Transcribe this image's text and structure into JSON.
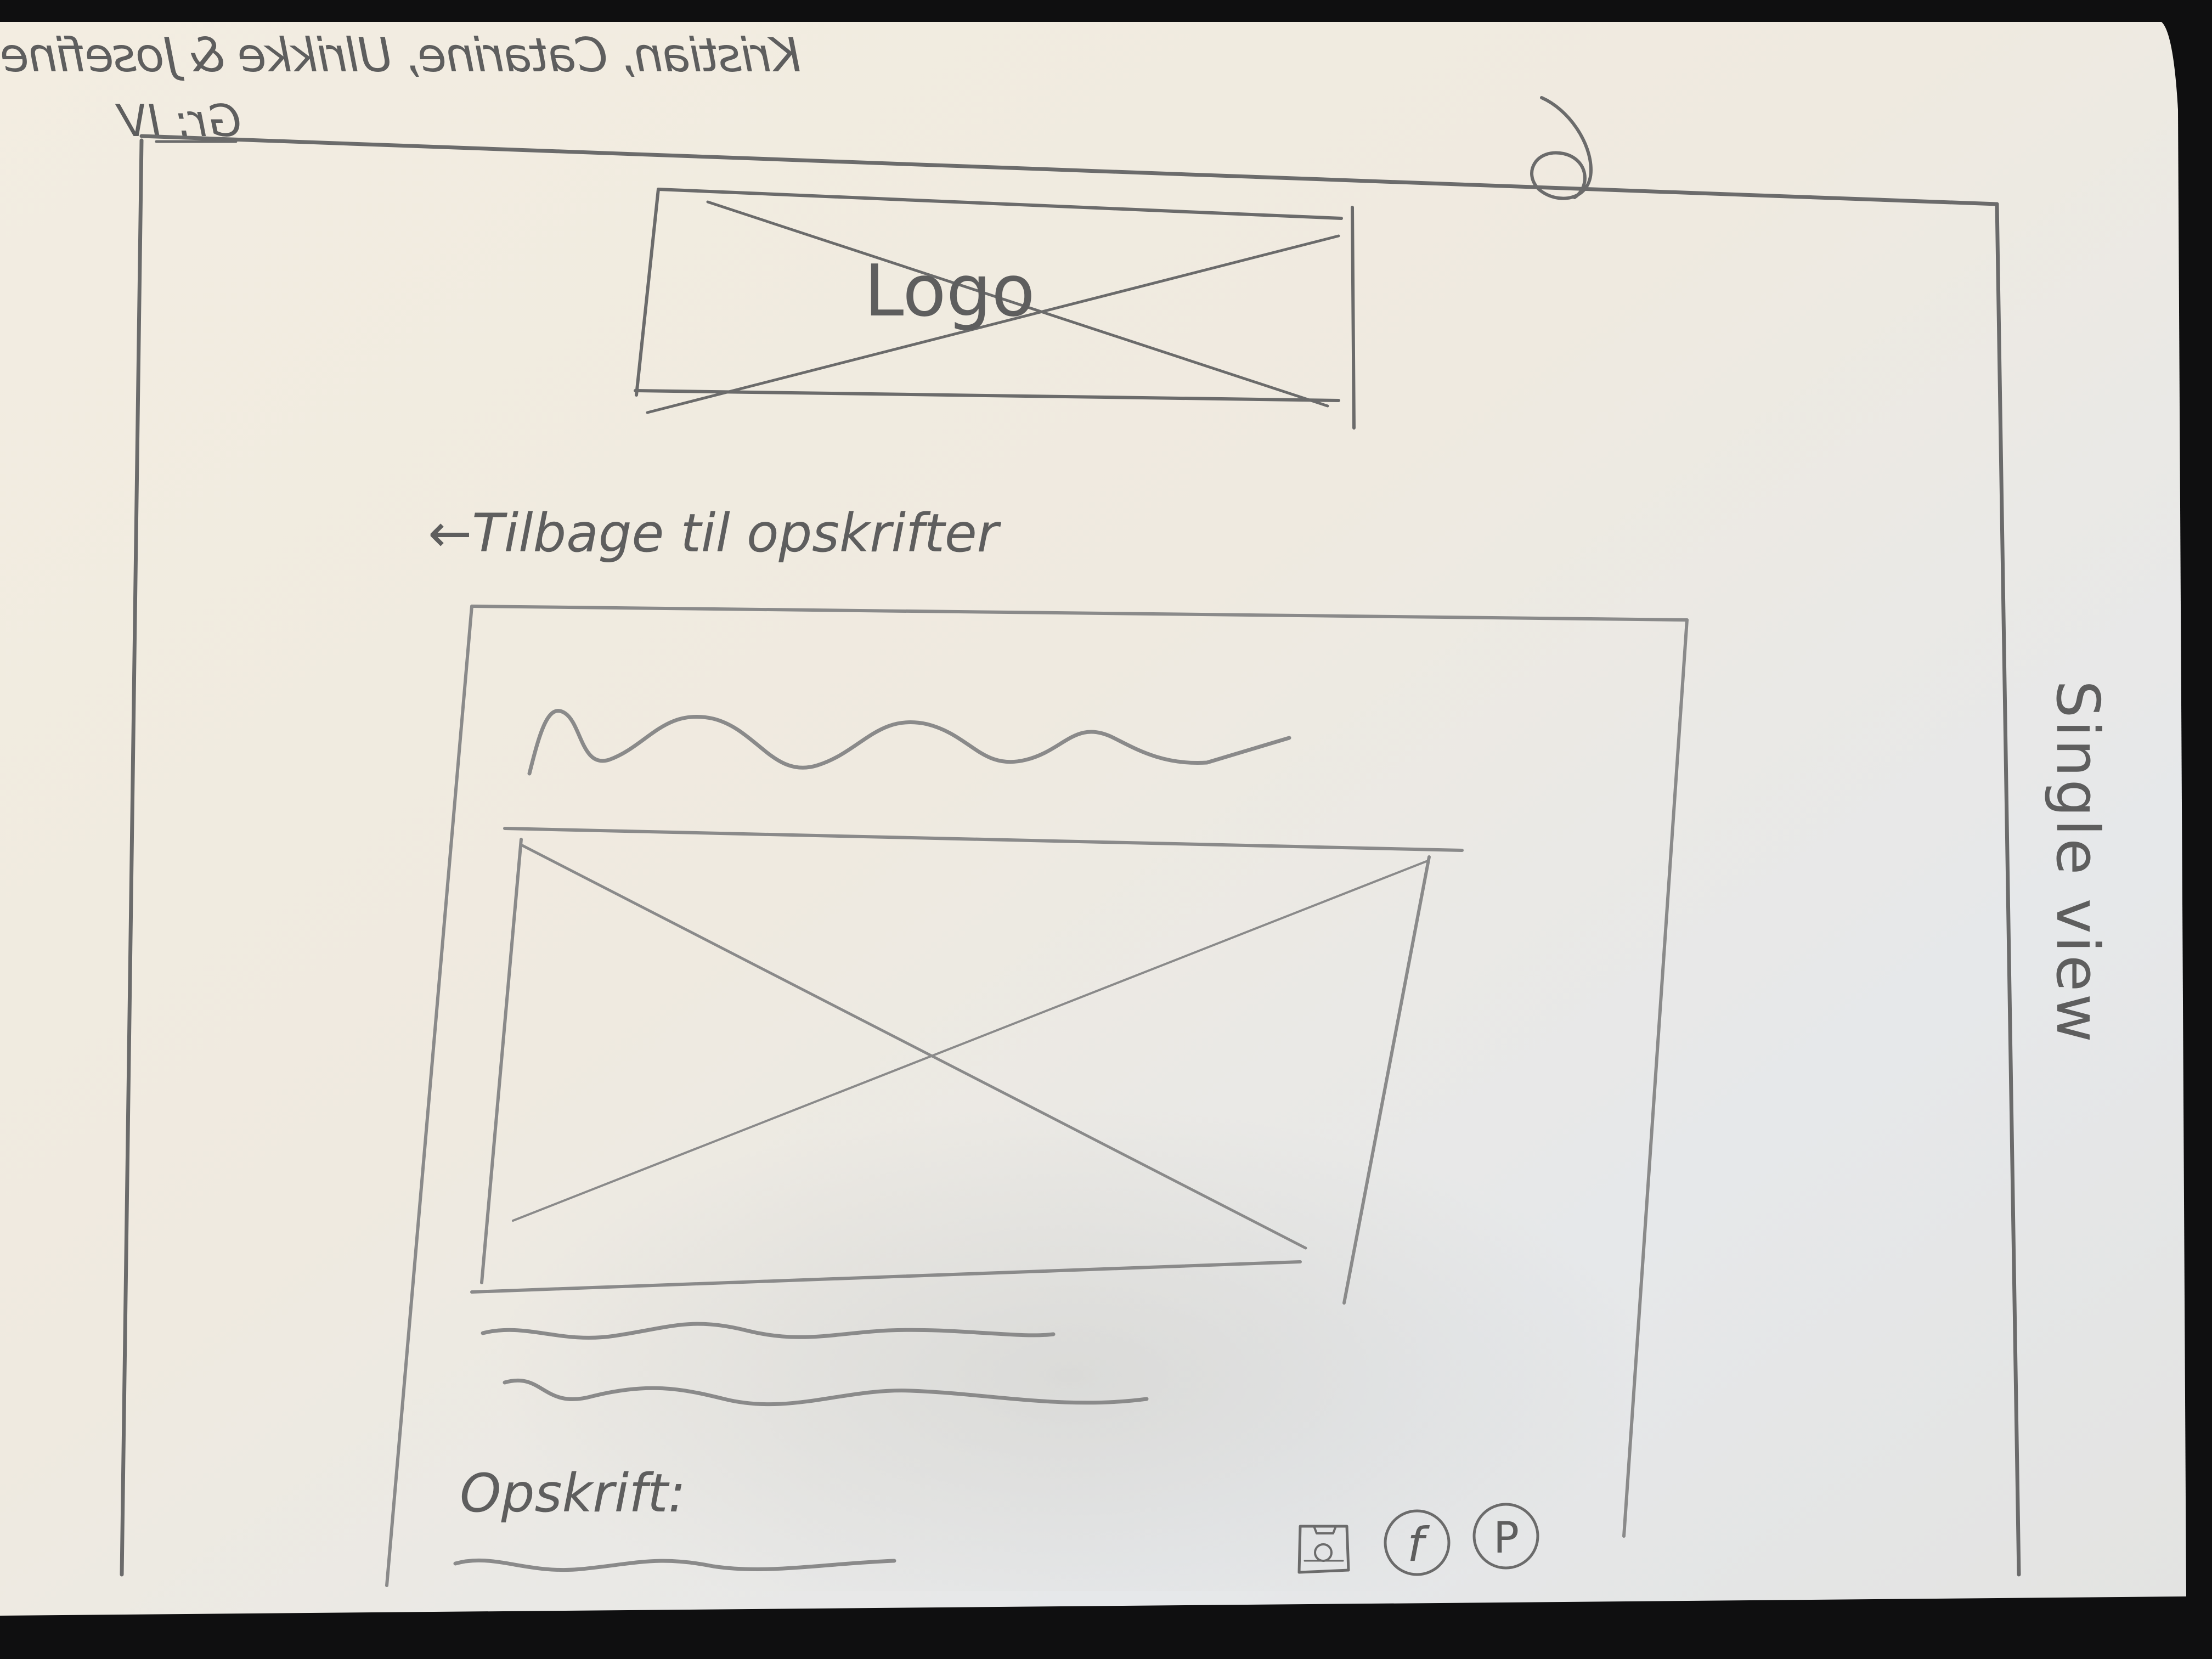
{
  "header": {
    "authors_mirrored": "Kristian, Catarine, Ulrikke & Josefine",
    "group_mirrored": "Gr: IV",
    "page_number": "6"
  },
  "sketch": {
    "logo_label": "Logo",
    "back_link": "←Tilbage til opskrifter",
    "recipe_label": "Opskrift:",
    "view_name": "Single view"
  },
  "icons": [
    "instagram-icon",
    "facebook-icon",
    "pinterest-icon"
  ],
  "social": {
    "facebook_glyph": "f",
    "pinterest_glyph": "P"
  },
  "colors": {
    "paper": "#f1ede4",
    "pencil": "#6b6b6b",
    "background": "#0f0f10"
  }
}
